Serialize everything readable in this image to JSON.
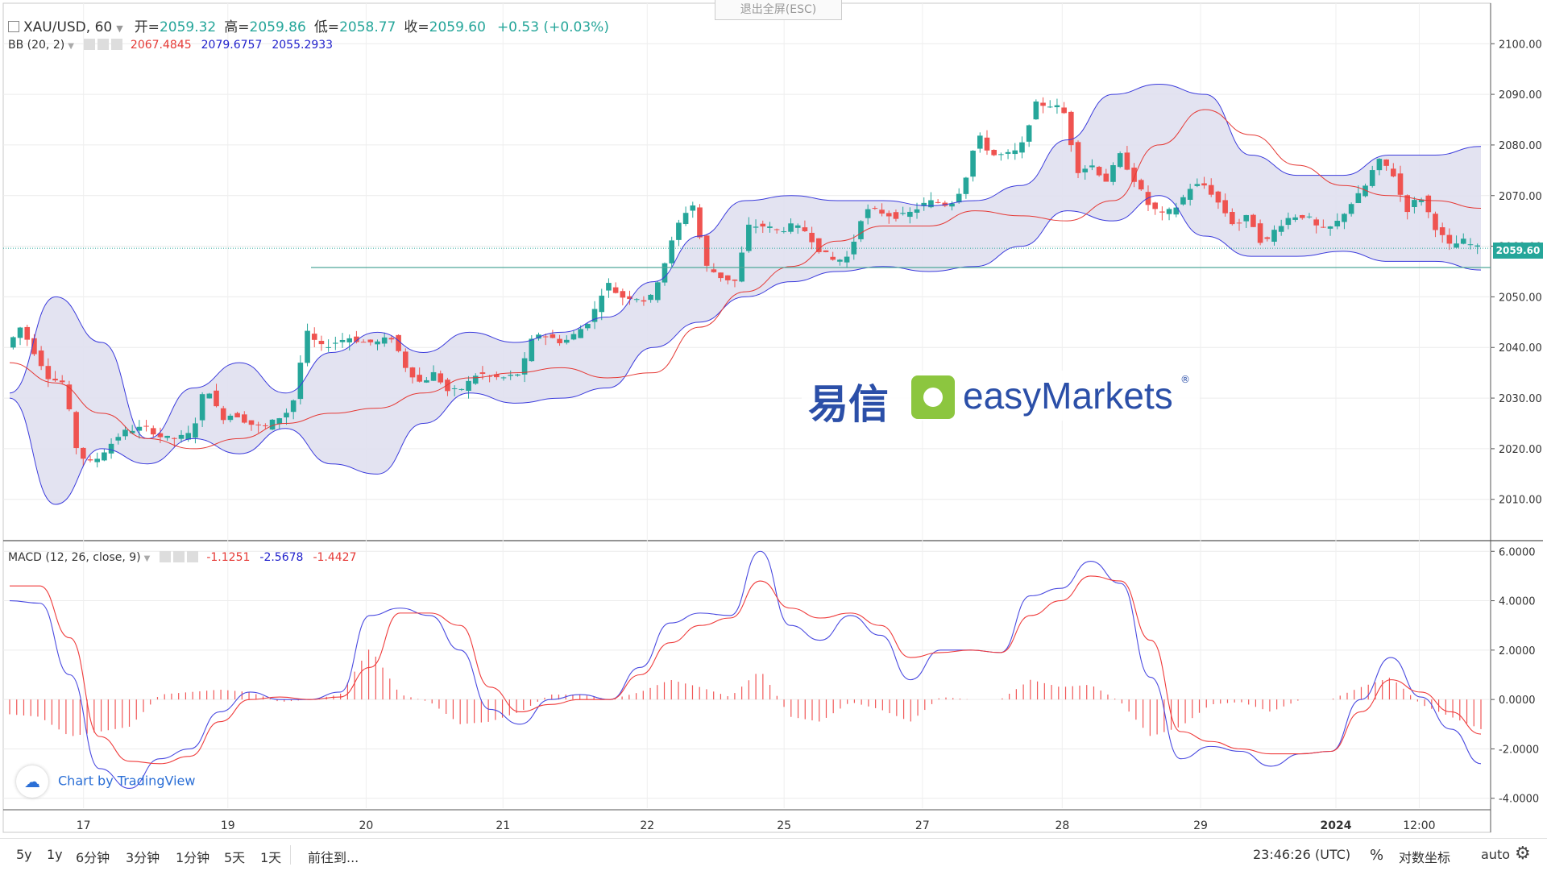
{
  "header": {
    "symbol": "XAU/USD, 60",
    "open_label": "开=",
    "open": "2059.32",
    "high_label": "高=",
    "high": "2059.86",
    "low_label": "低=",
    "low": "2058.77",
    "close_label": "收=",
    "close": "2059.60",
    "change": "+0.53 (+0.03%)",
    "exit_fullscreen": "退出全屏(ESC)"
  },
  "bb_legend": {
    "name": "BB (20, 2)",
    "basis": "2067.4845",
    "upper": "2079.6757",
    "lower": "2055.2933"
  },
  "macd_legend": {
    "name": "MACD (12, 26, close, 9)",
    "hist": "-1.1251",
    "macd": "-2.5678",
    "signal": "-1.4427"
  },
  "watermark": {
    "cn": "易信",
    "brand": "easyMarkets",
    "mark": "®"
  },
  "attribution": "Chart by TradingView",
  "price_tag": "2059.60",
  "bottom_bar": {
    "ranges": [
      "5y",
      "1y",
      "6分钟",
      "3分钟",
      "1分钟",
      "5天",
      "1天"
    ],
    "goto": "前往到...",
    "clock": "23:46:26 (UTC)",
    "percent": "%",
    "log_scale": "对数坐标",
    "auto": "auto"
  },
  "colors": {
    "up": "#26a69a",
    "down": "#ef5350",
    "bb_band": "#3b3bdc",
    "bb_basis": "#e53935",
    "bb_fill": "#e0e0f0",
    "macd_line": "#4a4ae0",
    "signal_line": "#ef3b3b",
    "hline": "#4fa89a"
  },
  "chart_data": [
    {
      "type": "candlestick",
      "title": "XAU/USD, 60",
      "ylim": [
        2002,
        2108
      ],
      "yticks": [
        "2010.00",
        "2020.00",
        "2030.00",
        "2040.00",
        "2050.00",
        "2060.00",
        "2070.00",
        "2080.00",
        "2090.00",
        "2100.00"
      ],
      "x_ticks": [
        "17",
        "19",
        "20",
        "21",
        "22",
        "25",
        "27",
        "28",
        "29",
        "2024",
        "12:00"
      ],
      "horizontal_line": 2055.8,
      "last_price": 2059.6,
      "price_path": [
        2040,
        2044,
        2039,
        2034,
        2033,
        2019,
        2017,
        2020,
        2023,
        2024,
        2024,
        2022,
        2022,
        2023,
        2033,
        2026,
        2027,
        2025,
        2024,
        2026,
        2028,
        2043,
        2040,
        2041,
        2042,
        2041,
        2041,
        2042,
        2036,
        2033,
        2035,
        2031,
        2032,
        2035,
        2034,
        2034,
        2035,
        2043,
        2042,
        2041,
        2043,
        2046,
        2053,
        2050,
        2050,
        2049,
        2056,
        2064,
        2069,
        2056,
        2054,
        2053,
        2064,
        2064,
        2063,
        2064,
        2063,
        2059,
        2057,
        2058,
        2067,
        2067,
        2066,
        2066,
        2068,
        2069,
        2068,
        2072,
        2082,
        2078,
        2078,
        2079,
        2088,
        2088,
        2087,
        2075,
        2076,
        2073,
        2078,
        2073,
        2068,
        2066,
        2068,
        2072,
        2072,
        2068,
        2064,
        2066,
        2060,
        2064,
        2066,
        2066,
        2063,
        2064,
        2068,
        2071,
        2077,
        2075,
        2067,
        2070,
        2064,
        2060,
        2061,
        2059.6
      ],
      "bollinger": {
        "period": 20,
        "stddev": 2,
        "basis": [
          2037,
          2033,
          2027,
          2022,
          2020,
          2022,
          2025,
          2027,
          2028,
          2031,
          2034,
          2035,
          2036,
          2034,
          2035,
          2044,
          2051,
          2056,
          2061,
          2064,
          2064,
          2067,
          2066,
          2065,
          2069,
          2080,
          2087,
          2082,
          2076,
          2072,
          2070,
          2069,
          2067.5
        ],
        "upper": [
          2031,
          2050,
          2041,
          2022,
          2032,
          2037,
          2031,
          2039,
          2043,
          2039,
          2043,
          2041,
          2043,
          2046,
          2053,
          2062,
          2069,
          2070,
          2069,
          2069,
          2068,
          2069,
          2072,
          2081,
          2090,
          2092,
          2090,
          2078,
          2074,
          2074,
          2078,
          2078,
          2079.7
        ],
        "lower": [
          2030,
          2009,
          2020,
          2017,
          2022,
          2019,
          2024,
          2017,
          2015,
          2025,
          2031,
          2029,
          2030,
          2032,
          2040,
          2045,
          2050,
          2053,
          2055,
          2056,
          2055,
          2056,
          2060,
          2067,
          2065,
          2070,
          2062,
          2058,
          2058,
          2059,
          2057,
          2057,
          2055.3
        ]
      }
    },
    {
      "type": "line",
      "title": "MACD (12, 26, close, 9)",
      "ylim": [
        -4.4,
        6.4
      ],
      "yticks": [
        "-4.0000",
        "-2.0000",
        "0.0000",
        "2.0000",
        "4.0000",
        "6.0000"
      ],
      "series": [
        {
          "name": "MACD",
          "values": [
            4.0,
            3.9,
            1.0,
            -2.8,
            -3.6,
            -2.4,
            -2.0,
            -0.5,
            0.3,
            0.0,
            0.0,
            0.3,
            3.4,
            3.7,
            3.4,
            2.0,
            -0.4,
            -1.0,
            0.0,
            0.2,
            0.0,
            1.3,
            3.1,
            3.5,
            3.4,
            6.0,
            3.0,
            2.4,
            3.4,
            2.6,
            0.8,
            2.0,
            2.0,
            1.9,
            4.2,
            4.5,
            5.6,
            4.7,
            0.9,
            -2.4,
            -1.9,
            -2.1,
            -2.7,
            -2.2,
            -2.1,
            0.0,
            1.7,
            0.1,
            -1.2,
            -2.6
          ]
        },
        {
          "name": "Signal",
          "values": [
            4.6,
            4.6,
            2.5,
            -1.5,
            -2.5,
            -2.6,
            -2.3,
            -0.9,
            0.0,
            0.1,
            0.0,
            0.1,
            1.3,
            3.5,
            3.5,
            3.0,
            0.5,
            -0.5,
            -0.2,
            0.0,
            0.0,
            1.0,
            2.3,
            3.0,
            3.3,
            4.8,
            3.7,
            3.3,
            3.5,
            3.0,
            1.7,
            1.9,
            2.0,
            1.9,
            3.4,
            4.0,
            5.0,
            4.8,
            2.4,
            -1.3,
            -1.7,
            -2.0,
            -2.2,
            -2.2,
            -2.1,
            -0.5,
            0.8,
            0.3,
            -0.5,
            -1.4
          ]
        }
      ]
    }
  ]
}
